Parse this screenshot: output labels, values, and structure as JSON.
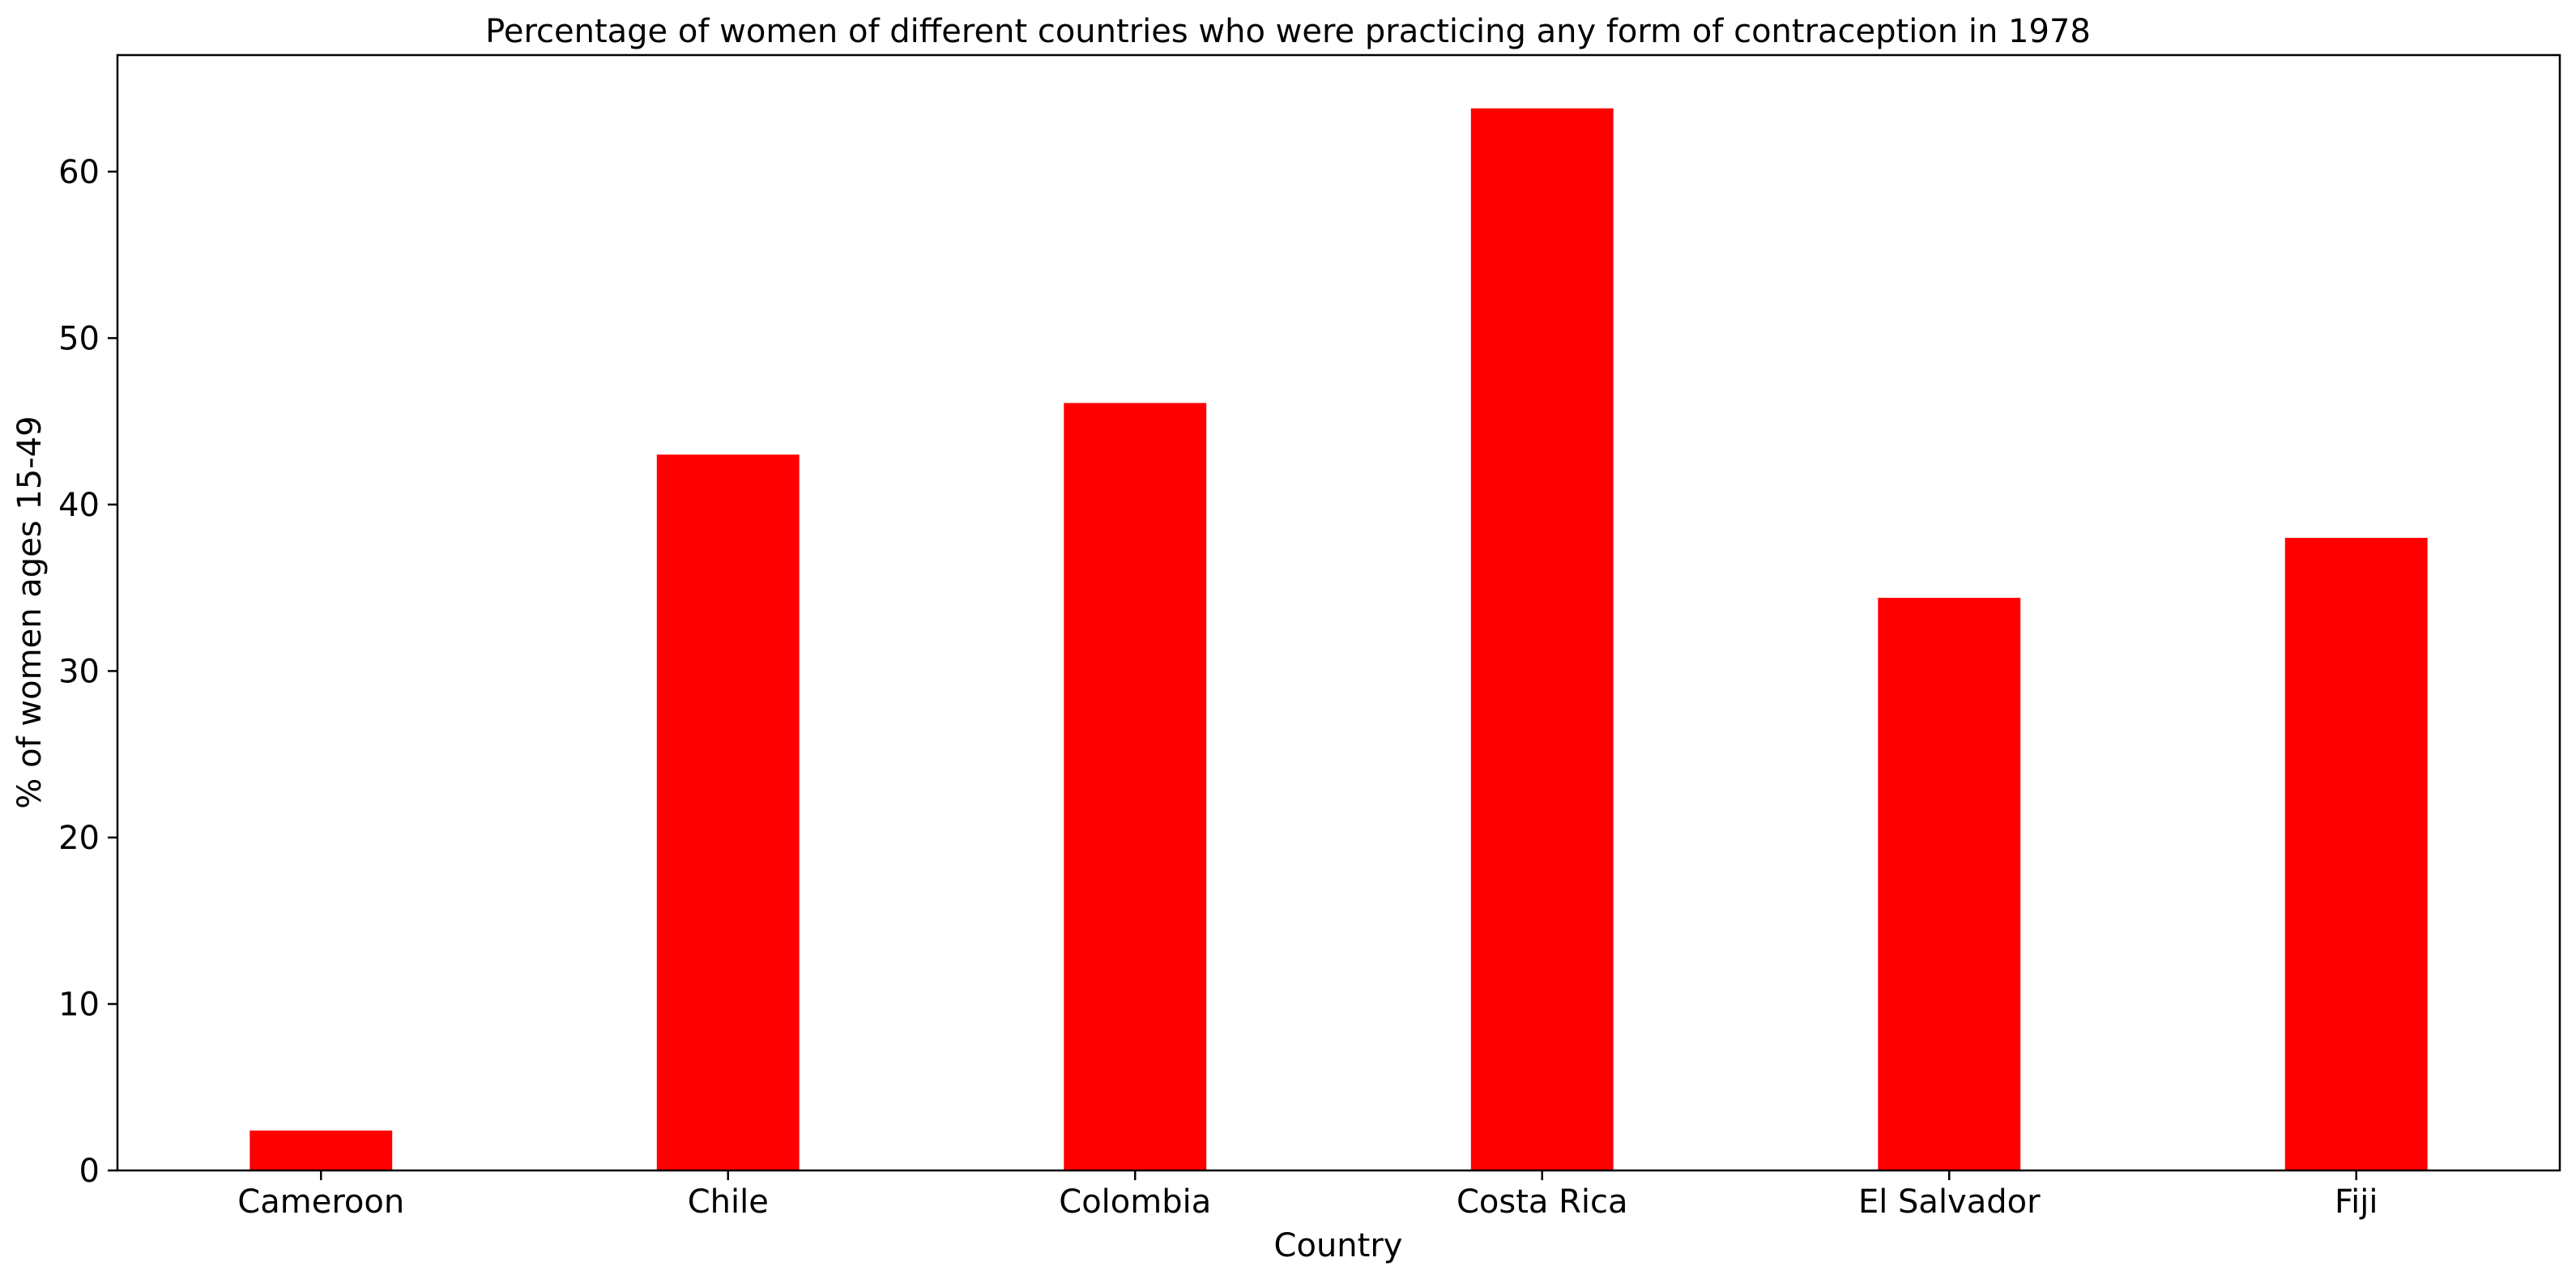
{
  "chart_data": {
    "type": "bar",
    "title": "Percentage of women of different countries who were practicing any form of contraception in 1978",
    "xlabel": "Country",
    "ylabel": "% of women ages 15-49",
    "categories": [
      "Cameroon",
      "Chile",
      "Colombia",
      "Costa Rica",
      "El Salvador",
      "Fiji"
    ],
    "values": [
      2.4,
      43.0,
      46.1,
      63.8,
      34.4,
      38.0
    ],
    "ylim": [
      0,
      67
    ],
    "yticks": [
      0,
      10,
      20,
      30,
      40,
      50,
      60
    ],
    "bar_color": "#ff0000",
    "grid": false,
    "legend": "none"
  }
}
